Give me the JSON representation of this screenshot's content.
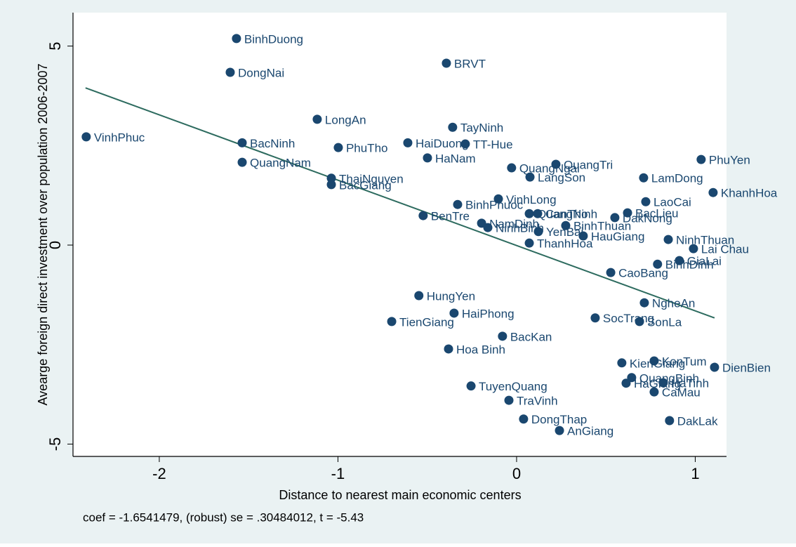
{
  "chart_data": {
    "type": "scatter",
    "xlabel": "Distance to nearest main economic centers",
    "ylabel": "Avearge foreign direct investment over population 2006-2007",
    "note": "coef = -1.6541479, (robust) se = .30484012, t = -5.43",
    "color": "#1a476f",
    "labels": [
      "BinhDuong",
      "DongNai",
      "BRVT",
      "LongAn",
      "TayNinh",
      "VinhPhuc",
      "BacNinh",
      "HaiDuong",
      "TT-Hue",
      "PhuTho",
      "HaNam",
      "QuangNam",
      "QuangNgai",
      "QuangTri",
      "PhuYen",
      "LangSon",
      "LamDong",
      "ThaiNguyen",
      "BacGiang",
      "KhanhHoa",
      "VinhLong",
      "LaoCai",
      "BinhPhuoc",
      "QuangNinh",
      "CanTho",
      "BacLieu",
      "DakNong",
      "BenTre",
      "NamDinh",
      "NinhBinh",
      "YenBai",
      "ThanhHoa",
      "BinhThuan",
      "HauGiang",
      "NinhThuan",
      "Lai Chau",
      "GiaLai",
      "BinhDinh",
      "CaoBang",
      "HungYen",
      "NgheAn",
      "HaiPhong",
      "SocTrang",
      "SonLa",
      "TienGiang",
      "BacKan",
      "Hoa Binh",
      "KonTum",
      "KienGiang",
      "DienBien",
      "QuangBinh",
      "HaGiang",
      "HaTinh",
      "CaMau",
      "TuyenQuang",
      "TraVinh",
      "DongThap",
      "DakLak",
      "AnGiang"
    ],
    "x": [
      -1.568,
      -1.603,
      -0.393,
      -1.116,
      -0.358,
      -2.409,
      -1.536,
      -0.609,
      -0.287,
      -0.998,
      -0.499,
      -1.536,
      -0.028,
      0.22,
      1.033,
      0.075,
      0.711,
      -1.037,
      -1.037,
      1.1,
      -0.102,
      0.723,
      -0.33,
      0.071,
      0.118,
      0.621,
      0.55,
      -0.523,
      -0.196,
      -0.161,
      0.122,
      0.071,
      0.275,
      0.373,
      0.849,
      0.99,
      0.911,
      0.789,
      0.527,
      -0.547,
      0.715,
      -0.35,
      0.44,
      0.688,
      -0.699,
      -0.079,
      -0.381,
      0.77,
      0.589,
      1.108,
      0.644,
      0.613,
      0.821,
      0.77,
      -0.255,
      -0.043,
      0.039,
      0.856,
      0.24
    ],
    "y": [
      5.19,
      4.34,
      4.57,
      3.16,
      2.96,
      2.72,
      2.57,
      2.57,
      2.54,
      2.45,
      2.19,
      2.08,
      1.94,
      2.03,
      2.15,
      1.71,
      1.69,
      1.68,
      1.52,
      1.32,
      1.16,
      1.09,
      1.02,
      0.79,
      0.79,
      0.81,
      0.69,
      0.74,
      0.55,
      0.44,
      0.34,
      0.05,
      0.49,
      0.23,
      0.14,
      -0.09,
      -0.39,
      -0.48,
      -0.69,
      -1.27,
      -1.45,
      -1.71,
      -1.83,
      -1.92,
      -1.92,
      -2.29,
      -2.61,
      -2.91,
      -2.96,
      -3.07,
      -3.33,
      -3.47,
      -3.46,
      -3.69,
      -3.54,
      -3.9,
      -4.37,
      -4.41,
      -4.66
    ],
    "fit_line": {
      "x": [
        -2.413,
        1.108
      ],
      "y": [
        3.95,
        -1.83
      ],
      "color": "#2d6b5f"
    },
    "xlim": [
      -2.483,
      1.175
    ],
    "ylim": [
      -5.31,
      5.84
    ],
    "xticks": [
      -2,
      -1,
      0,
      1
    ],
    "yticks": [
      -5,
      0,
      5
    ]
  }
}
